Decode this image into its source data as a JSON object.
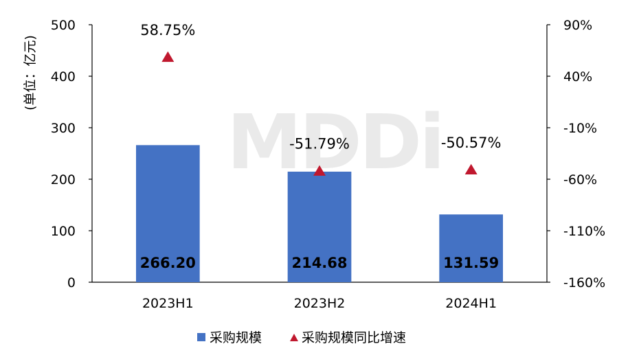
{
  "watermark": "MDDi",
  "chart_data": {
    "type": "bar",
    "categories": [
      "2023H1",
      "2023H2",
      "2024H1"
    ],
    "series": [
      {
        "name": "采购规模",
        "kind": "bar",
        "axis": "left",
        "color": "#4472C4",
        "values": [
          266.2,
          214.68,
          131.59
        ],
        "labels": [
          "266.20",
          "214.68",
          "131.59"
        ]
      },
      {
        "name": "采购规模同比增速",
        "kind": "marker",
        "marker": "triangle",
        "axis": "right",
        "color": "#C0182E",
        "values": [
          58.75,
          -51.79,
          -50.57
        ],
        "labels": [
          "58.75%",
          "-51.79%",
          "-50.57%"
        ]
      }
    ],
    "ylabel": "(单位：亿元)",
    "ylim": [
      0,
      500
    ],
    "yticks": [
      "0",
      "100",
      "200",
      "300",
      "400",
      "500"
    ],
    "y2lim": [
      -160,
      90
    ],
    "y2ticks": [
      "-160%",
      "-110%",
      "-60%",
      "-10%",
      "40%",
      "90%"
    ],
    "grid": false,
    "legend_position": "bottom"
  }
}
